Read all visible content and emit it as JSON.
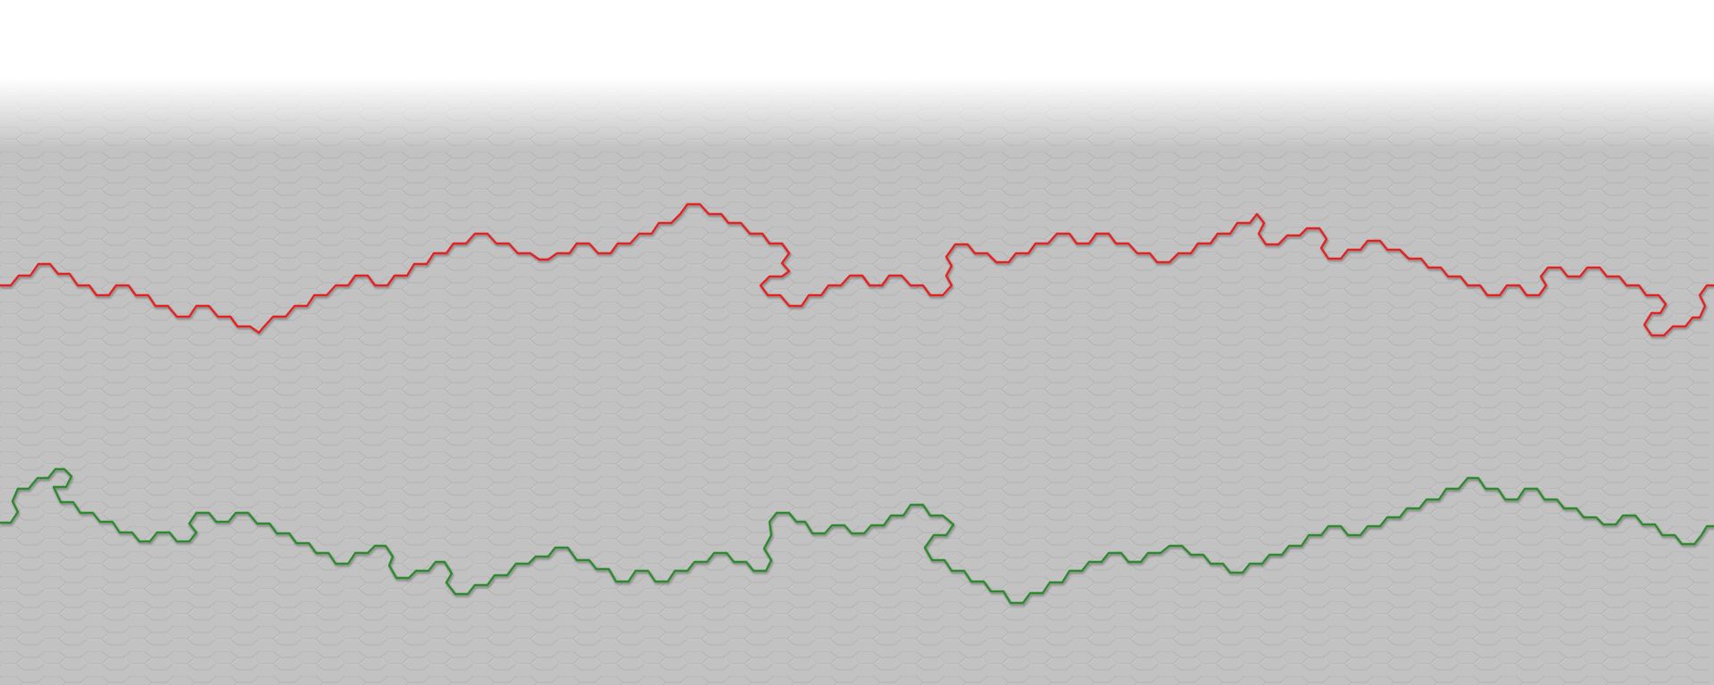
{
  "board": {
    "background_color": "#c2c2c2",
    "top_fade_color": "#ffffff",
    "hex_grid_line_color": "#b4b4b4",
    "hex_grid_highlight_color": "#cfcfcf"
  },
  "paths": [
    {
      "name": "red-path",
      "color": "#e32222"
    },
    {
      "name": "green-path",
      "color": "#2e8a2e"
    }
  ]
}
